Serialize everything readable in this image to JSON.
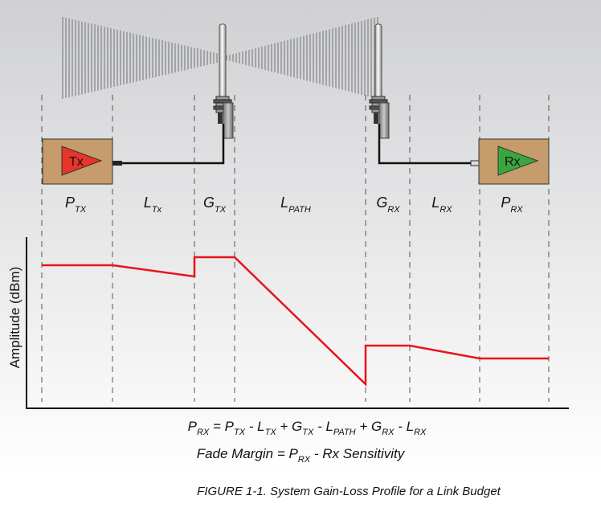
{
  "stages": [
    {
      "id": "ptx",
      "main": "P",
      "sub": "TX"
    },
    {
      "id": "ltx",
      "main": "L",
      "sub": "Tx"
    },
    {
      "id": "gtx",
      "main": "G",
      "sub": "TX"
    },
    {
      "id": "lpath",
      "main": "L",
      "sub": "PATH"
    },
    {
      "id": "grx",
      "main": "G",
      "sub": "RX"
    },
    {
      "id": "lrx",
      "main": "L",
      "sub": "RX"
    },
    {
      "id": "prx",
      "main": "P",
      "sub": "RX"
    }
  ],
  "tx_label": "Tx",
  "rx_label": "Rx",
  "y_axis_label": "Amplitude (dBm)",
  "equation1": [
    {
      "t": "P"
    },
    {
      "s": "RX"
    },
    {
      "t": " = P"
    },
    {
      "s": "TX"
    },
    {
      "t": " - L"
    },
    {
      "s": "TX"
    },
    {
      "t": " + G"
    },
    {
      "s": "TX"
    },
    {
      "t": " - L"
    },
    {
      "s": "PATH"
    },
    {
      "t": " + G"
    },
    {
      "s": "RX"
    },
    {
      "t": " - L"
    },
    {
      "s": "RX"
    }
  ],
  "equation2": [
    {
      "t": "Fade Margin = P"
    },
    {
      "s": "RX"
    },
    {
      "t": " - Rx Sensitivity"
    }
  ],
  "caption": "FIGURE 1-1.  System Gain-Loss Profile for a Link Budget",
  "colors": {
    "profile_line": "#e8141b",
    "tx_amp": "#e8342a",
    "rx_amp": "#3aa63f",
    "box": "#c69c6d",
    "bg_top": "#cfd0d2",
    "bg_bottom": "#ffffff"
  },
  "chart_data": {
    "type": "line",
    "title": "",
    "xlabel": "",
    "ylabel": "Amplitude (dBm)",
    "segments": [
      "P_TX",
      "L_Tx",
      "G_TX",
      "L_PATH",
      "G_RX",
      "L_RX",
      "P_RX"
    ],
    "profile_relative_level": [
      {
        "at": "P_TX start",
        "level": 0.85
      },
      {
        "at": "P_TX end",
        "level": 0.85
      },
      {
        "at": "L_Tx end",
        "level": 0.78
      },
      {
        "at": "G_TX step up",
        "level": 0.9
      },
      {
        "at": "G_TX end",
        "level": 0.9
      },
      {
        "at": "L_PATH end",
        "level": 0.11
      },
      {
        "at": "G_RX step up",
        "level": 0.35
      },
      {
        "at": "G_RX end",
        "level": 0.35
      },
      {
        "at": "L_RX end",
        "level": 0.27
      },
      {
        "at": "P_RX end",
        "level": 0.27
      }
    ]
  }
}
